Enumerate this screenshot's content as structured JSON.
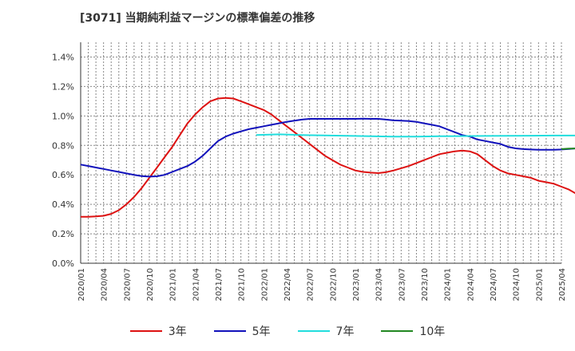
{
  "chart_data": {
    "type": "line",
    "title": "[3071]  当期純利益マージンの標準偏差の推移",
    "xlabel": "",
    "ylabel": "",
    "ylim": [
      0,
      0.015
    ],
    "yticks": [
      0,
      0.002,
      0.004,
      0.006,
      0.008,
      0.01,
      0.012,
      0.014
    ],
    "ytick_labels": [
      "0.0%",
      "0.2%",
      "0.4%",
      "0.6%",
      "0.8%",
      "1.0%",
      "1.2%",
      "1.4%"
    ],
    "xlim": [
      "2020-01",
      "2025-04"
    ],
    "xtick_labels": [
      "2020/01",
      "2020/04",
      "2020/07",
      "2020/10",
      "2021/01",
      "2021/04",
      "2021/07",
      "2021/10",
      "2022/01",
      "2022/04",
      "2022/07",
      "2022/10",
      "2023/01",
      "2023/04",
      "2023/07",
      "2023/10",
      "2024/01",
      "2024/04",
      "2024/07",
      "2024/10",
      "2025/01",
      "2025/04"
    ],
    "grid": true,
    "legend_position": "bottom",
    "series": [
      {
        "name": "3年",
        "color": "#dd1111",
        "points": [
          [
            "2020-01",
            0.00315
          ],
          [
            "2020-02",
            0.00315
          ],
          [
            "2020-03",
            0.00318
          ],
          [
            "2020-04",
            0.00322
          ],
          [
            "2020-05",
            0.00335
          ],
          [
            "2020-06",
            0.0036
          ],
          [
            "2020-07",
            0.004
          ],
          [
            "2020-08",
            0.0045
          ],
          [
            "2020-09",
            0.0051
          ],
          [
            "2020-10",
            0.0058
          ],
          [
            "2020-11",
            0.0065
          ],
          [
            "2020-12",
            0.0072
          ],
          [
            "2021-01",
            0.0079
          ],
          [
            "2021-02",
            0.0087
          ],
          [
            "2021-03",
            0.0095
          ],
          [
            "2021-04",
            0.0101
          ],
          [
            "2021-05",
            0.0106
          ],
          [
            "2021-06",
            0.011
          ],
          [
            "2021-07",
            0.01118
          ],
          [
            "2021-08",
            0.01122
          ],
          [
            "2021-09",
            0.01118
          ],
          [
            "2021-10",
            0.011
          ],
          [
            "2021-11",
            0.0108
          ],
          [
            "2021-12",
            0.0106
          ],
          [
            "2022-01",
            0.0104
          ],
          [
            "2022-02",
            0.0101
          ],
          [
            "2022-03",
            0.0097
          ],
          [
            "2022-04",
            0.0093
          ],
          [
            "2022-05",
            0.0089
          ],
          [
            "2022-06",
            0.0085
          ],
          [
            "2022-07",
            0.0081
          ],
          [
            "2022-08",
            0.0077
          ],
          [
            "2022-09",
            0.0073
          ],
          [
            "2022-10",
            0.007
          ],
          [
            "2022-11",
            0.0067
          ],
          [
            "2022-12",
            0.0065
          ],
          [
            "2023-01",
            0.0063
          ],
          [
            "2023-02",
            0.0062
          ],
          [
            "2023-03",
            0.00615
          ],
          [
            "2023-04",
            0.00612
          ],
          [
            "2023-05",
            0.00618
          ],
          [
            "2023-06",
            0.0063
          ],
          [
            "2023-07",
            0.00645
          ],
          [
            "2023-08",
            0.0066
          ],
          [
            "2023-09",
            0.0068
          ],
          [
            "2023-10",
            0.007
          ],
          [
            "2023-11",
            0.0072
          ],
          [
            "2023-12",
            0.0074
          ],
          [
            "2024-01",
            0.0075
          ],
          [
            "2024-02",
            0.0076
          ],
          [
            "2024-03",
            0.00765
          ],
          [
            "2024-04",
            0.0076
          ],
          [
            "2024-05",
            0.0074
          ],
          [
            "2024-06",
            0.007
          ],
          [
            "2024-07",
            0.0066
          ],
          [
            "2024-08",
            0.0063
          ],
          [
            "2024-09",
            0.0061
          ],
          [
            "2024-10",
            0.006
          ],
          [
            "2024-11",
            0.0059
          ],
          [
            "2024-12",
            0.0058
          ],
          [
            "2025-01",
            0.0056
          ],
          [
            "2025-02",
            0.0055
          ],
          [
            "2025-03",
            0.0054
          ],
          [
            "2025-04",
            0.0052
          ],
          [
            "2025-05",
            0.005
          ],
          [
            "2025-06",
            0.0047
          ]
        ]
      },
      {
        "name": "5年",
        "color": "#1111bb",
        "points": [
          [
            "2020-01",
            0.0067
          ],
          [
            "2020-02",
            0.0066
          ],
          [
            "2020-03",
            0.0065
          ],
          [
            "2020-04",
            0.0064
          ],
          [
            "2020-05",
            0.0063
          ],
          [
            "2020-06",
            0.0062
          ],
          [
            "2020-07",
            0.0061
          ],
          [
            "2020-08",
            0.006
          ],
          [
            "2020-09",
            0.00592
          ],
          [
            "2020-10",
            0.00588
          ],
          [
            "2020-11",
            0.0059
          ],
          [
            "2020-12",
            0.006
          ],
          [
            "2021-01",
            0.0062
          ],
          [
            "2021-02",
            0.0064
          ],
          [
            "2021-03",
            0.0066
          ],
          [
            "2021-04",
            0.0069
          ],
          [
            "2021-05",
            0.0073
          ],
          [
            "2021-06",
            0.0078
          ],
          [
            "2021-07",
            0.0083
          ],
          [
            "2021-08",
            0.0086
          ],
          [
            "2021-09",
            0.0088
          ],
          [
            "2021-10",
            0.00895
          ],
          [
            "2021-11",
            0.0091
          ],
          [
            "2021-12",
            0.0092
          ],
          [
            "2022-01",
            0.0093
          ],
          [
            "2022-02",
            0.0094
          ],
          [
            "2022-03",
            0.0095
          ],
          [
            "2022-04",
            0.0096
          ],
          [
            "2022-05",
            0.00968
          ],
          [
            "2022-06",
            0.00975
          ],
          [
            "2022-07",
            0.0098
          ],
          [
            "2022-08",
            0.0098
          ],
          [
            "2022-09",
            0.0098
          ],
          [
            "2022-10",
            0.0098
          ],
          [
            "2022-11",
            0.0098
          ],
          [
            "2022-12",
            0.0098
          ],
          [
            "2023-01",
            0.0098
          ],
          [
            "2023-02",
            0.00982
          ],
          [
            "2023-03",
            0.0098
          ],
          [
            "2023-04",
            0.0098
          ],
          [
            "2023-05",
            0.00975
          ],
          [
            "2023-06",
            0.0097
          ],
          [
            "2023-07",
            0.00968
          ],
          [
            "2023-08",
            0.00965
          ],
          [
            "2023-09",
            0.0096
          ],
          [
            "2023-10",
            0.0095
          ],
          [
            "2023-11",
            0.0094
          ],
          [
            "2023-12",
            0.0093
          ],
          [
            "2024-01",
            0.0091
          ],
          [
            "2024-02",
            0.0089
          ],
          [
            "2024-03",
            0.0087
          ],
          [
            "2024-04",
            0.0086
          ],
          [
            "2024-05",
            0.0084
          ],
          [
            "2024-06",
            0.0083
          ],
          [
            "2024-07",
            0.0082
          ],
          [
            "2024-08",
            0.0081
          ],
          [
            "2024-09",
            0.0079
          ],
          [
            "2024-10",
            0.0078
          ],
          [
            "2024-11",
            0.00775
          ],
          [
            "2024-12",
            0.00772
          ],
          [
            "2025-01",
            0.0077
          ],
          [
            "2025-02",
            0.0077
          ],
          [
            "2025-03",
            0.0077
          ],
          [
            "2025-04",
            0.00772
          ],
          [
            "2025-05",
            0.00776
          ],
          [
            "2025-06",
            0.0078
          ]
        ]
      },
      {
        "name": "7年",
        "color": "#22dddd",
        "points": [
          [
            "2021-12",
            0.0087
          ],
          [
            "2022-03",
            0.00875
          ],
          [
            "2022-06",
            0.0087
          ],
          [
            "2022-09",
            0.00868
          ],
          [
            "2022-12",
            0.00865
          ],
          [
            "2023-03",
            0.00862
          ],
          [
            "2023-06",
            0.0086
          ],
          [
            "2023-09",
            0.0086
          ],
          [
            "2023-12",
            0.00862
          ],
          [
            "2024-03",
            0.00863
          ],
          [
            "2024-06",
            0.00864
          ],
          [
            "2024-09",
            0.00865
          ],
          [
            "2024-12",
            0.00866
          ],
          [
            "2025-03",
            0.00867
          ],
          [
            "2025-06",
            0.00867
          ]
        ]
      },
      {
        "name": "10年",
        "color": "#228822",
        "points": [
          [
            "2025-04",
            0.00775
          ],
          [
            "2025-05",
            0.00778
          ],
          [
            "2025-06",
            0.0078
          ]
        ]
      }
    ]
  }
}
